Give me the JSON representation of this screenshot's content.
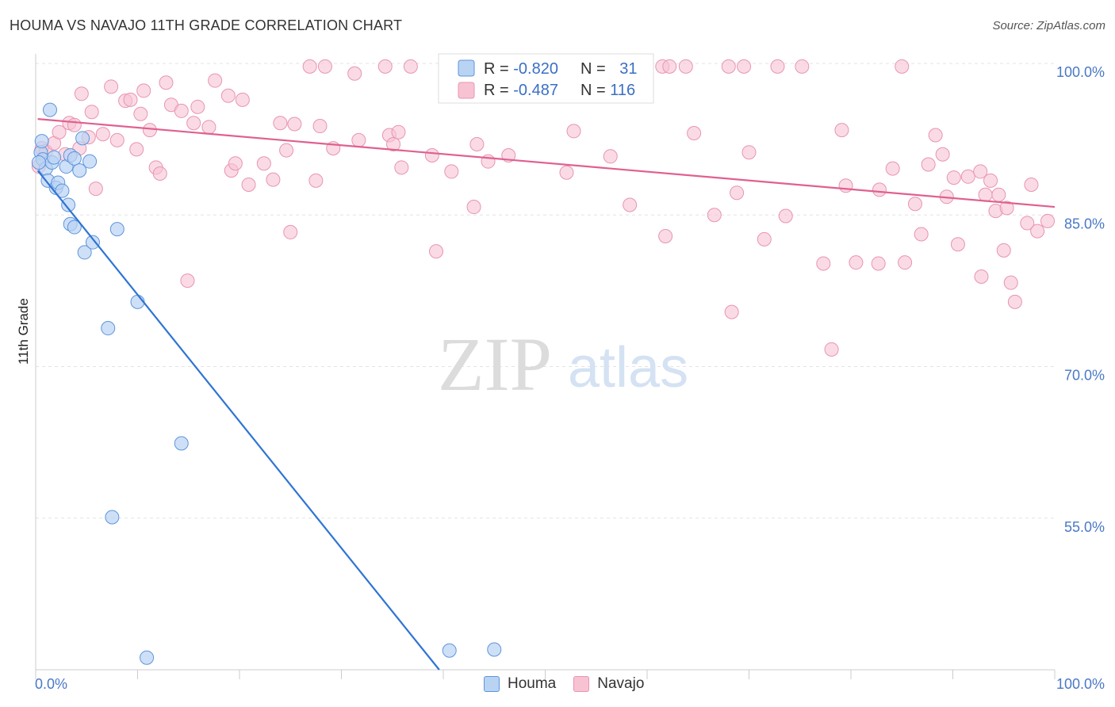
{
  "header": {
    "title": "HOUMA VS NAVAJO 11TH GRADE CORRELATION CHART",
    "source": "Source: ZipAtlas.com"
  },
  "watermark": {
    "part1": "ZIP",
    "part2": "atlas"
  },
  "legend": {
    "rows": [
      {
        "r_label": "R = ",
        "r_value": "-0.820",
        "n_label": "N = ",
        "n_value": "31"
      },
      {
        "r_label": "R = ",
        "r_value": "-0.487",
        "n_label": "N = ",
        "n_value": "116"
      }
    ]
  },
  "bottom_legend": {
    "houma": "Houma",
    "navajo": "Navajo"
  },
  "colors": {
    "houma_fill": "#b9d3f3",
    "houma_stroke": "#5e95db",
    "houma_line": "#2f74d4",
    "navajo_fill": "#f7c3d3",
    "navajo_stroke": "#e994b0",
    "navajo_line": "#e0608f",
    "accent_text": "#3a6fc5"
  },
  "chart_data": {
    "type": "scatter",
    "title": "HOUMA VS NAVAJO 11TH GRADE CORRELATION CHART",
    "xlabel": "",
    "ylabel": "11th Grade",
    "xlim": [
      0,
      100
    ],
    "ylim": [
      40,
      101
    ],
    "x_ticks": [
      "0.0%",
      "100.0%"
    ],
    "y_ticks": [
      {
        "value": 100,
        "label": "100.0%"
      },
      {
        "value": 85,
        "label": "85.0%"
      },
      {
        "value": 70,
        "label": "70.0%"
      },
      {
        "value": 55,
        "label": "55.0%"
      }
    ],
    "grid": true,
    "legend_position": "top-center",
    "series": [
      {
        "name": "Houma",
        "R": -0.82,
        "N": 31,
        "trend": {
          "x": [
            0.2,
            39.6
          ],
          "y": [
            89.4,
            40.0
          ]
        },
        "points": [
          [
            0.5,
            91.2
          ],
          [
            0.6,
            92.3
          ],
          [
            0.7,
            90.5
          ],
          [
            1.0,
            89.6
          ],
          [
            1.2,
            88.4
          ],
          [
            1.4,
            95.4
          ],
          [
            1.6,
            90.2
          ],
          [
            1.8,
            90.7
          ],
          [
            2.0,
            87.7
          ],
          [
            2.2,
            88.2
          ],
          [
            2.6,
            87.4
          ],
          [
            3.0,
            89.8
          ],
          [
            3.2,
            86.0
          ],
          [
            3.4,
            90.9
          ],
          [
            3.4,
            84.1
          ],
          [
            3.8,
            90.6
          ],
          [
            3.8,
            83.8
          ],
          [
            4.3,
            89.4
          ],
          [
            4.6,
            92.6
          ],
          [
            4.8,
            81.3
          ],
          [
            5.3,
            90.3
          ],
          [
            5.6,
            82.3
          ],
          [
            7.1,
            73.8
          ],
          [
            7.5,
            55.1
          ],
          [
            8.0,
            83.6
          ],
          [
            10.0,
            76.4
          ],
          [
            10.9,
            41.2
          ],
          [
            14.3,
            62.4
          ],
          [
            40.6,
            41.9
          ],
          [
            45.0,
            42.0
          ],
          [
            0.3,
            90.2
          ]
        ]
      },
      {
        "name": "Navajo",
        "R": -0.487,
        "N": 116,
        "trend": {
          "x": [
            0.2,
            100.0
          ],
          "y": [
            94.5,
            85.8
          ]
        },
        "points": [
          [
            0.3,
            89.8
          ],
          [
            0.6,
            91.6
          ],
          [
            1.0,
            91.3
          ],
          [
            1.8,
            92.1
          ],
          [
            2.3,
            93.2
          ],
          [
            2.9,
            91.0
          ],
          [
            3.3,
            94.1
          ],
          [
            3.8,
            93.9
          ],
          [
            4.3,
            91.6
          ],
          [
            4.5,
            97.0
          ],
          [
            5.2,
            92.7
          ],
          [
            5.5,
            95.2
          ],
          [
            5.9,
            87.6
          ],
          [
            6.6,
            93.0
          ],
          [
            7.4,
            97.7
          ],
          [
            8.0,
            92.4
          ],
          [
            8.8,
            96.3
          ],
          [
            9.3,
            96.4
          ],
          [
            9.9,
            91.5
          ],
          [
            10.3,
            95.0
          ],
          [
            10.6,
            97.3
          ],
          [
            11.2,
            93.4
          ],
          [
            11.8,
            89.7
          ],
          [
            12.2,
            89.1
          ],
          [
            12.8,
            98.1
          ],
          [
            13.3,
            95.9
          ],
          [
            14.3,
            95.3
          ],
          [
            14.9,
            78.5
          ],
          [
            15.5,
            94.1
          ],
          [
            15.9,
            95.7
          ],
          [
            17.0,
            93.7
          ],
          [
            17.6,
            98.3
          ],
          [
            18.9,
            96.8
          ],
          [
            19.2,
            89.4
          ],
          [
            19.6,
            90.1
          ],
          [
            20.3,
            96.4
          ],
          [
            20.9,
            88.0
          ],
          [
            22.4,
            90.1
          ],
          [
            23.3,
            88.5
          ],
          [
            24.0,
            94.1
          ],
          [
            24.6,
            91.4
          ],
          [
            25.0,
            83.3
          ],
          [
            25.4,
            94.0
          ],
          [
            26.9,
            99.7
          ],
          [
            27.5,
            88.4
          ],
          [
            27.9,
            93.8
          ],
          [
            28.4,
            99.7
          ],
          [
            29.2,
            91.6
          ],
          [
            31.3,
            99.0
          ],
          [
            31.7,
            92.4
          ],
          [
            34.3,
            99.7
          ],
          [
            34.7,
            92.9
          ],
          [
            35.1,
            92.0
          ],
          [
            35.6,
            93.2
          ],
          [
            35.9,
            89.7
          ],
          [
            36.8,
            99.7
          ],
          [
            38.9,
            90.9
          ],
          [
            39.3,
            81.4
          ],
          [
            40.8,
            89.3
          ],
          [
            43.0,
            85.8
          ],
          [
            43.3,
            92.0
          ],
          [
            44.4,
            90.3
          ],
          [
            46.4,
            90.9
          ],
          [
            52.1,
            89.2
          ],
          [
            52.8,
            93.3
          ],
          [
            53.5,
            99.7
          ],
          [
            56.4,
            90.8
          ],
          [
            58.3,
            86.0
          ],
          [
            61.5,
            99.7
          ],
          [
            61.8,
            82.9
          ],
          [
            62.2,
            99.7
          ],
          [
            63.8,
            99.7
          ],
          [
            64.6,
            93.1
          ],
          [
            66.6,
            85.0
          ],
          [
            68.0,
            99.7
          ],
          [
            68.3,
            75.4
          ],
          [
            68.8,
            87.2
          ],
          [
            69.5,
            99.7
          ],
          [
            70.0,
            91.2
          ],
          [
            71.5,
            82.6
          ],
          [
            72.8,
            99.7
          ],
          [
            73.6,
            84.9
          ],
          [
            75.2,
            99.7
          ],
          [
            77.3,
            80.2
          ],
          [
            78.1,
            71.7
          ],
          [
            79.1,
            93.4
          ],
          [
            79.5,
            87.9
          ],
          [
            80.5,
            80.3
          ],
          [
            82.7,
            80.2
          ],
          [
            82.8,
            87.5
          ],
          [
            84.1,
            89.6
          ],
          [
            85.0,
            99.7
          ],
          [
            85.3,
            80.3
          ],
          [
            86.3,
            86.1
          ],
          [
            86.9,
            83.1
          ],
          [
            87.6,
            90.0
          ],
          [
            88.3,
            92.9
          ],
          [
            89.0,
            91.0
          ],
          [
            89.4,
            86.8
          ],
          [
            90.1,
            88.7
          ],
          [
            90.5,
            82.1
          ],
          [
            91.5,
            88.8
          ],
          [
            92.7,
            89.3
          ],
          [
            92.8,
            78.9
          ],
          [
            93.2,
            87.0
          ],
          [
            93.7,
            88.4
          ],
          [
            94.2,
            85.4
          ],
          [
            94.5,
            87.0
          ],
          [
            95.0,
            81.5
          ],
          [
            95.3,
            85.7
          ],
          [
            95.7,
            78.3
          ],
          [
            96.1,
            76.4
          ],
          [
            97.3,
            84.2
          ],
          [
            97.7,
            88.0
          ],
          [
            98.3,
            83.4
          ],
          [
            99.3,
            84.4
          ]
        ]
      }
    ]
  }
}
